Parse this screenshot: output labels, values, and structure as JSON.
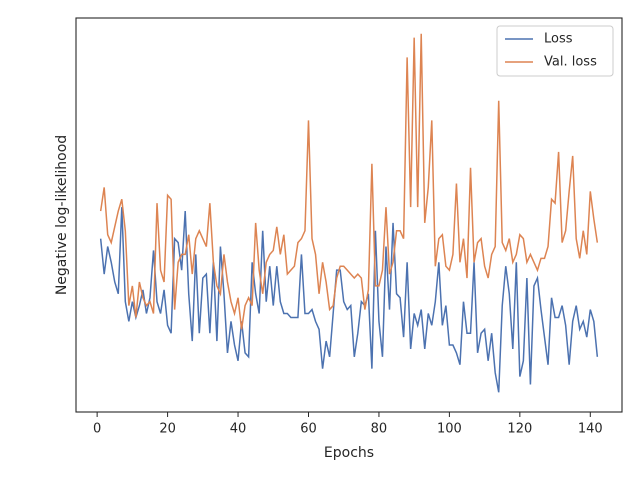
{
  "chart_data": {
    "type": "line",
    "xlabel": "Epochs",
    "ylabel": "Negative log-likelihood",
    "x": [
      1,
      2,
      3,
      4,
      5,
      6,
      7,
      8,
      9,
      10,
      11,
      12,
      13,
      14,
      15,
      16,
      17,
      18,
      19,
      20,
      21,
      22,
      23,
      24,
      25,
      26,
      27,
      28,
      29,
      30,
      31,
      32,
      33,
      34,
      35,
      36,
      37,
      38,
      39,
      40,
      41,
      42,
      43,
      44,
      45,
      46,
      47,
      48,
      49,
      50,
      51,
      52,
      53,
      54,
      55,
      56,
      57,
      58,
      59,
      60,
      61,
      62,
      63,
      64,
      65,
      66,
      67,
      68,
      69,
      70,
      71,
      72,
      73,
      74,
      75,
      76,
      77,
      78,
      79,
      80,
      81,
      82,
      83,
      84,
      85,
      86,
      87,
      88,
      89,
      90,
      91,
      92,
      93,
      94,
      95,
      96,
      97,
      98,
      99,
      100,
      101,
      102,
      103,
      104,
      105,
      106,
      107,
      108,
      109,
      110,
      111,
      112,
      113,
      114,
      115,
      116,
      117,
      118,
      119,
      120,
      121,
      122,
      123,
      124,
      125,
      126,
      127,
      128,
      129,
      130,
      131,
      132,
      133,
      134,
      135,
      136,
      137,
      138,
      139,
      140,
      141,
      142
    ],
    "series": [
      {
        "name": "Loss",
        "color": "#4c72b0",
        "values": [
          44,
          35,
          42,
          38,
          33,
          30,
          52,
          28,
          23,
          28,
          24,
          27,
          31,
          25,
          29,
          41,
          28,
          25,
          31,
          22,
          20,
          44,
          43,
          36,
          51,
          30,
          18,
          40,
          20,
          34,
          35,
          20,
          38,
          18,
          42,
          30,
          15,
          23,
          17,
          13,
          23,
          15,
          14,
          38,
          30,
          25,
          46,
          28,
          37,
          27,
          37,
          28,
          25,
          25,
          24,
          24,
          24,
          40,
          25,
          25,
          26,
          23,
          21,
          11,
          18,
          14,
          25,
          36,
          36,
          28,
          26,
          27,
          14,
          20,
          28,
          27,
          30,
          11,
          46,
          23,
          14,
          42,
          26,
          48,
          30,
          29,
          19,
          38,
          16,
          25,
          22,
          26,
          16,
          25,
          22,
          28,
          38,
          22,
          27,
          17,
          17,
          15,
          12,
          28,
          20,
          20,
          38,
          15,
          20,
          21,
          13,
          20,
          10,
          5,
          27,
          37,
          30,
          16,
          38,
          9,
          13,
          34,
          7,
          32,
          34,
          26,
          19,
          12,
          29,
          24,
          24,
          27,
          22,
          12,
          23,
          27,
          21,
          23,
          19,
          26,
          23,
          14
        ]
      },
      {
        "name": "Val. loss",
        "color": "#dd8452",
        "values": [
          51,
          57,
          45,
          43,
          47,
          51,
          54,
          46,
          27,
          32,
          24,
          33,
          29,
          27,
          28,
          25,
          53,
          36,
          33,
          55,
          54,
          26,
          38,
          40,
          40,
          45,
          35,
          44,
          46,
          44,
          42,
          53,
          38,
          32,
          30,
          40,
          33,
          28,
          25,
          29,
          21,
          27,
          29,
          27,
          48,
          36,
          30,
          38,
          40,
          41,
          47,
          40,
          45,
          35,
          36,
          37,
          43,
          44,
          46,
          74,
          44,
          40,
          30,
          38,
          33,
          26,
          27,
          34,
          37,
          37,
          36,
          35,
          34,
          35,
          34,
          26,
          31,
          63,
          32,
          32,
          36,
          52,
          35,
          38,
          46,
          46,
          44,
          90,
          52,
          95,
          52,
          96,
          48,
          57,
          74,
          37,
          44,
          45,
          37,
          36,
          40,
          58,
          38,
          44,
          34,
          62,
          38,
          43,
          44,
          37,
          34,
          40,
          42,
          79,
          43,
          41,
          44,
          38,
          40,
          45,
          44,
          38,
          40,
          38,
          36,
          39,
          39,
          42,
          54,
          53,
          66,
          43,
          46,
          56,
          65,
          44,
          39,
          46,
          40,
          56,
          49,
          43
        ]
      }
    ],
    "xlim": [
      -6,
      149
    ],
    "xticks": [
      0,
      20,
      40,
      60,
      80,
      100,
      120,
      140
    ],
    "ylim": [
      0,
      100
    ],
    "legend": "upper right"
  }
}
